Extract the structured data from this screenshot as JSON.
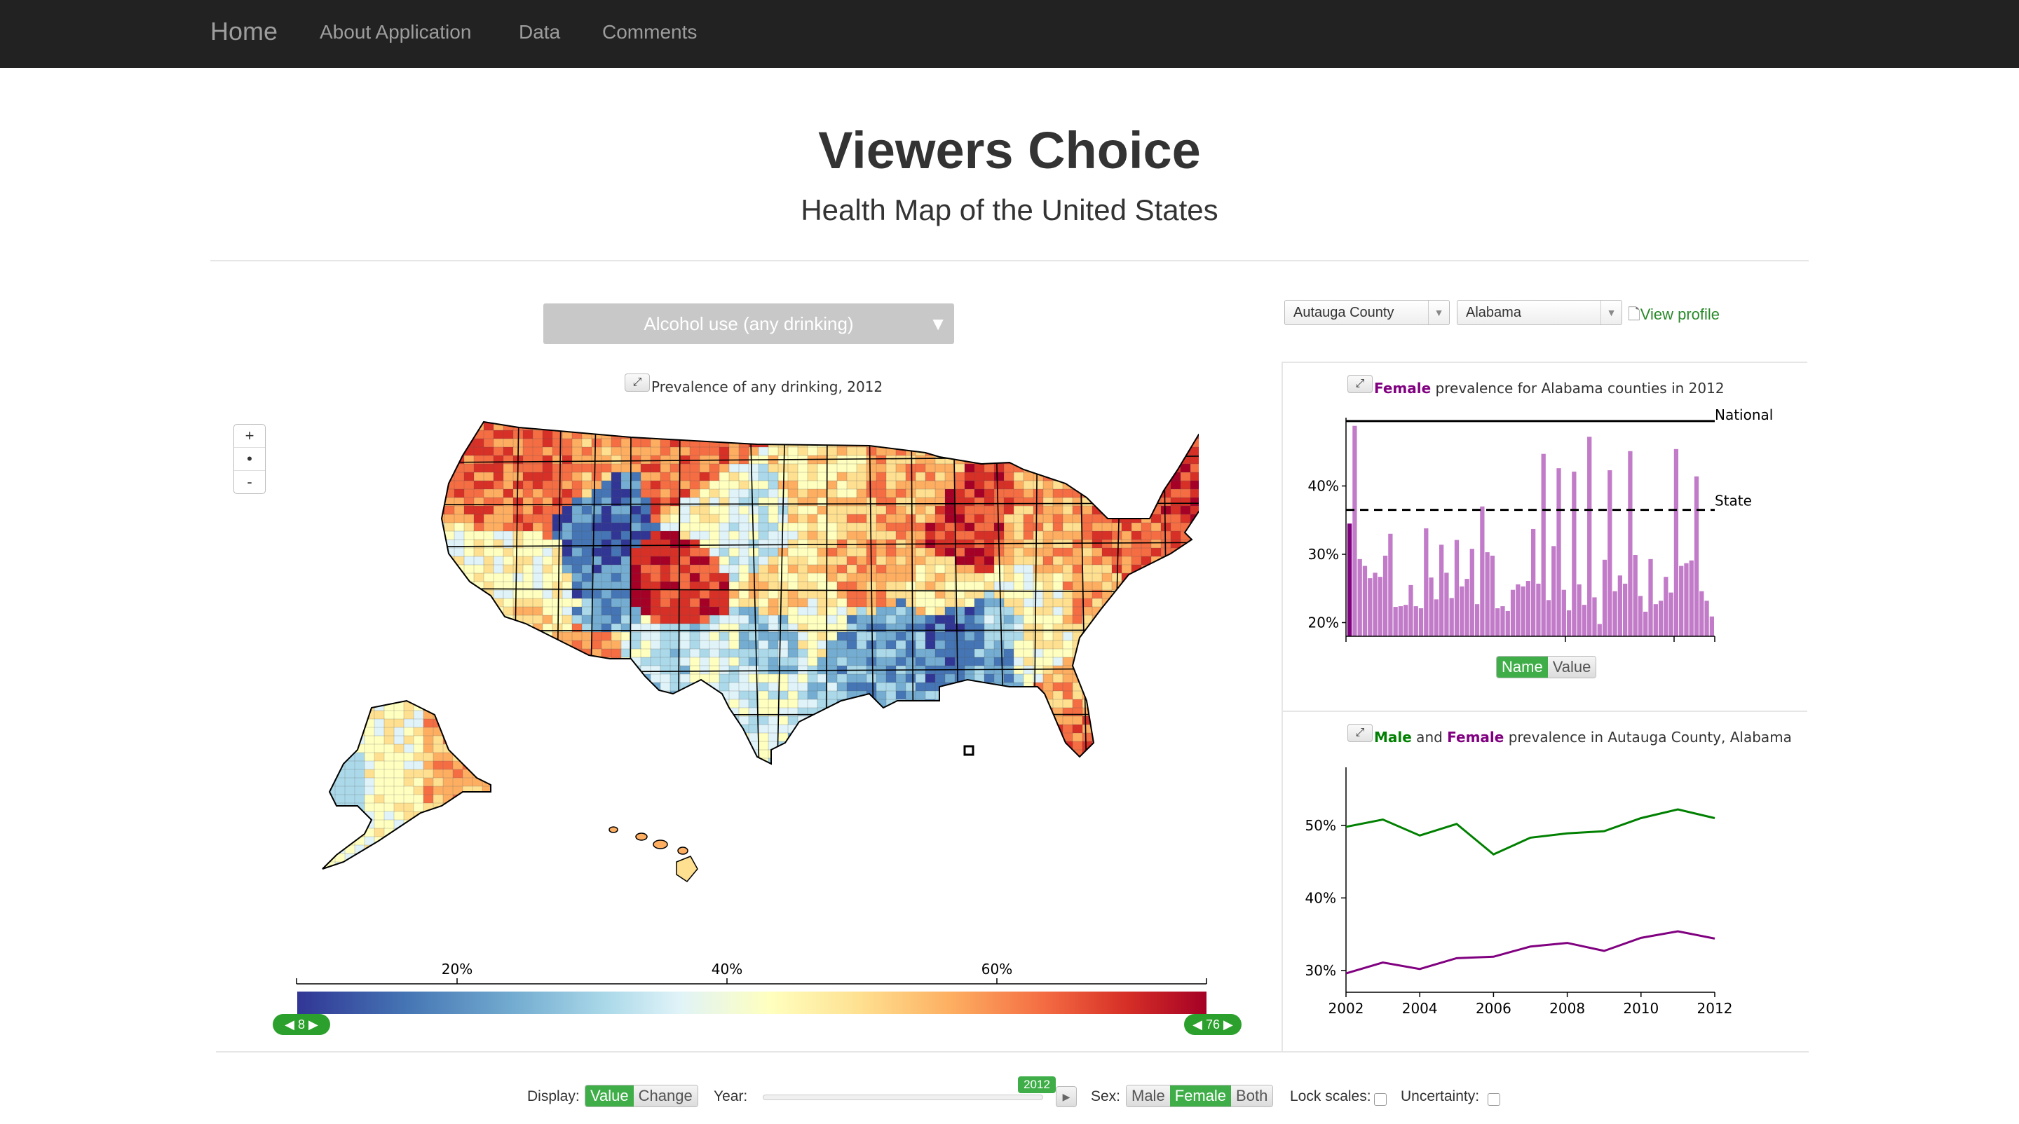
{
  "nav": {
    "brand": "Home",
    "links": [
      "About Application",
      "Data",
      "Comments"
    ]
  },
  "header": {
    "title": "Viewers Choice",
    "subtitle": "Health Map of the United States"
  },
  "map": {
    "measure_label": "Alcohol use (any drinking)",
    "caption": "Prevalence of any drinking, 2012",
    "zoom": [
      "+",
      "•",
      "-"
    ],
    "legend_ticks": [
      "20%",
      "40%",
      "60%"
    ],
    "legend_colors": [
      "#313695",
      "#4575b4",
      "#74add1",
      "#abd9e9",
      "#e0f3f8",
      "#ffffbf",
      "#fee090",
      "#fdae61",
      "#f46d43",
      "#d73027",
      "#a50026"
    ],
    "range_min": "8",
    "range_max": "76"
  },
  "profile": {
    "county": "Autauga County",
    "state": "Alabama",
    "view_profile": "View profile"
  },
  "bar_chart": {
    "title_highlight": "Female",
    "title_rest": " prevalence for Alabama counties in 2012",
    "national_label": "National",
    "state_label": "State",
    "y_ticks": [
      "40%",
      "30%",
      "20%"
    ],
    "toggle": [
      "Name",
      "Value"
    ],
    "highlight_color": "#800080",
    "bar_color": "#c27bc8"
  },
  "line_chart": {
    "title_male": "Male",
    "title_and": " and ",
    "title_female": "Female",
    "title_rest": " prevalence in Autauga County, Alabama",
    "male_color": "#008000",
    "female_color": "#800080"
  },
  "controls": {
    "display_label": "Display:",
    "display_options": [
      "Value",
      "Change"
    ],
    "year_label": "Year:",
    "year_value": "2012",
    "sex_label": "Sex:",
    "sex_options": [
      "Male",
      "Female",
      "Both"
    ],
    "lock_label": "Lock scales:",
    "uncertainty_label": "Uncertainty:"
  },
  "chart_data": [
    {
      "type": "bar",
      "title": "Female prevalence for Alabama counties in 2012",
      "ylabel": "",
      "ylim": [
        18,
        50
      ],
      "reference_lines": [
        {
          "name": "National",
          "value": 49.5
        },
        {
          "name": "State",
          "value": 36.5
        }
      ],
      "values": [
        34.5,
        48.8,
        29.3,
        28.3,
        26.5,
        27.3,
        26.7,
        29.8,
        33,
        22.3,
        22.4,
        22.6,
        25.5,
        22.4,
        22.1,
        33.8,
        26.6,
        23.4,
        31.4,
        27.3,
        23.6,
        32.1,
        25.3,
        26.4,
        30.8,
        22.7,
        37,
        30.3,
        29.8,
        22.1,
        22.4,
        21.7,
        24.8,
        25.6,
        25.3,
        26.1,
        33.7,
        25.7,
        44.7,
        23.3,
        31.2,
        42.6,
        24.8,
        21.8,
        42.1,
        25.6,
        22.6,
        47.2,
        23.7,
        19.8,
        29.2,
        42.3,
        24.6,
        26.9,
        25.7,
        45.1,
        29.9,
        23.9,
        21.6,
        29.3,
        22.7,
        23.2,
        26.7,
        24.4,
        45.4,
        28.3,
        28.7,
        29.1,
        41.4,
        24.6,
        23.2,
        20.9
      ]
    },
    {
      "type": "line",
      "title": "Male and Female prevalence in Autauga County, Alabama",
      "x": [
        2002,
        2003,
        2004,
        2005,
        2006,
        2007,
        2008,
        2009,
        2010,
        2011,
        2012
      ],
      "xlim": [
        2002,
        2012
      ],
      "ylim": [
        27,
        58
      ],
      "x_ticks": [
        "2002",
        "2004",
        "2006",
        "2008",
        "2010",
        "2012"
      ],
      "y_ticks": [
        "50%",
        "40%",
        "30%"
      ],
      "series": [
        {
          "name": "Male",
          "values": [
            49.8,
            50.8,
            48.6,
            50.2,
            46.0,
            48.3,
            48.9,
            49.2,
            51.0,
            52.2,
            51.0
          ]
        },
        {
          "name": "Female",
          "values": [
            29.6,
            31.1,
            30.2,
            31.7,
            31.9,
            33.3,
            33.8,
            32.7,
            34.5,
            35.4,
            34.4
          ]
        }
      ]
    }
  ]
}
